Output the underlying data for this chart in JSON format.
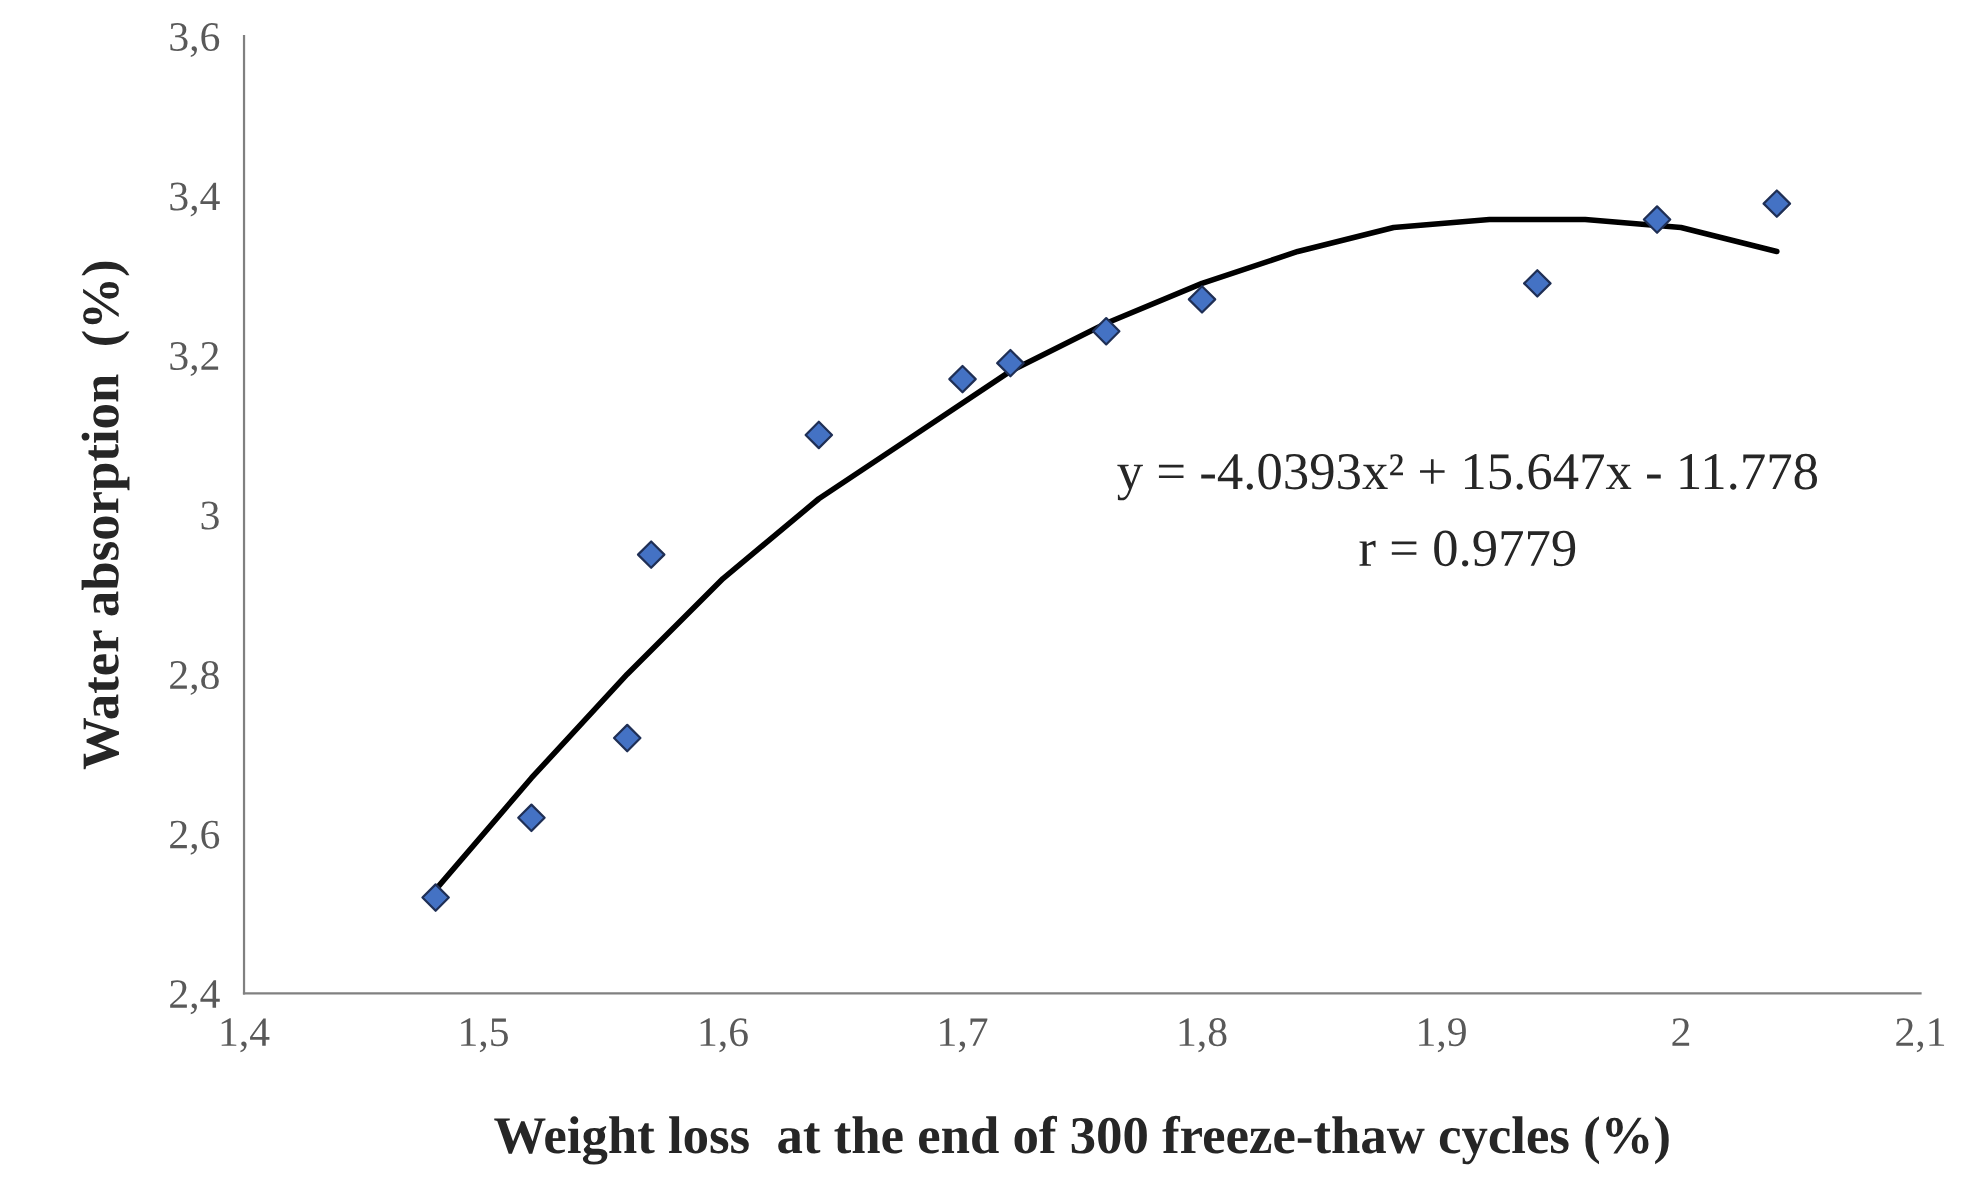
{
  "chart_data": {
    "type": "scatter",
    "xlabel": "Weight loss  at the end of 300 freeze-thaw cycles (%)",
    "ylabel": "Water absorption  (%)",
    "series": [
      {
        "color": "#4472c4",
        "marker": "diamond",
        "x": [
          1.48,
          1.52,
          1.56,
          1.57,
          1.64,
          1.7,
          1.72,
          1.76,
          1.8,
          1.94,
          1.99,
          2.04
        ],
        "values": [
          2.52,
          2.62,
          2.72,
          2.95,
          3.1,
          3.17,
          3.19,
          3.23,
          3.27,
          3.29,
          3.37,
          3.39
        ]
      },
      {
        "type": "line",
        "color": "#000000",
        "marker": "none",
        "line_style": "solid",
        "x": [
          1.48,
          1.52,
          1.56,
          1.6,
          1.64,
          1.68,
          1.72,
          1.76,
          1.8,
          1.84,
          1.88,
          1.92,
          1.96,
          2.0,
          2.04
        ],
        "values": [
          2.53,
          2.67,
          2.8,
          2.92,
          3.02,
          3.1,
          3.18,
          3.24,
          3.29,
          3.33,
          3.36,
          3.37,
          3.37,
          3.36,
          3.33
        ]
      }
    ],
    "xlim": [
      1.4,
      2.1
    ],
    "xticks": [
      {
        "value": 1.4,
        "label": "1,4"
      },
      {
        "value": 1.5,
        "label": "1,5"
      },
      {
        "value": 1.6,
        "label": "1,6"
      },
      {
        "value": 1.7,
        "label": "1,7"
      },
      {
        "value": 1.8,
        "label": "1,8"
      },
      {
        "value": 1.9,
        "label": "1,9"
      },
      {
        "value": 2,
        "label": "2"
      },
      {
        "value": 2.1,
        "label": "2,1"
      }
    ],
    "ylim": [
      2.4,
      3.6
    ],
    "yticks": [
      {
        "value": 2.4,
        "label": "2,4"
      },
      {
        "value": 2.6,
        "label": "2,6"
      },
      {
        "value": 2.8,
        "label": "2,8"
      },
      {
        "value": 3,
        "label": "3"
      },
      {
        "value": 3.2,
        "label": "3,2"
      },
      {
        "value": 3.4,
        "label": "3,4"
      },
      {
        "value": 3.6,
        "label": "3,6"
      }
    ],
    "grid": false,
    "legend": false,
    "annotations": [
      "y = -4.0393x² + 15.647x - 11.778",
      "r = 0.9779"
    ]
  }
}
